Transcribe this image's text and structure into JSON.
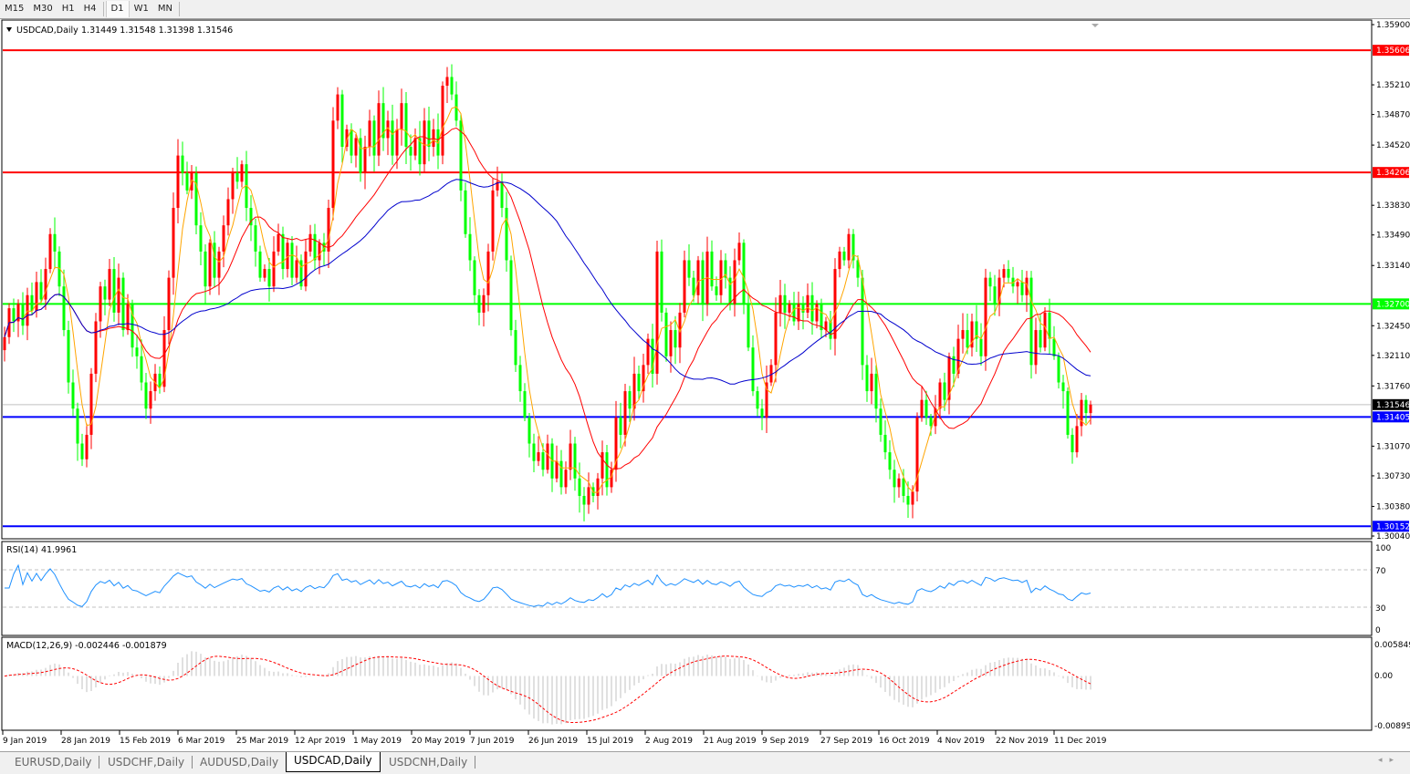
{
  "toolbar": {
    "timeframes": [
      "M15",
      "M30",
      "H1",
      "H4",
      "D1",
      "W1",
      "MN"
    ],
    "active": "D1"
  },
  "chart": {
    "symbol_label": "USDCAD,Daily",
    "ohlc_label": "1.31449 1.31548 1.31398 1.31546",
    "price_ticks": [
      "1.35900",
      "1.35210",
      "1.34870",
      "1.34520",
      "1.33830",
      "1.33490",
      "1.33140",
      "1.32450",
      "1.32110",
      "1.31760",
      "1.31070",
      "1.30730",
      "1.30380",
      "1.30040"
    ],
    "hlines": [
      {
        "price": "1.35606",
        "color": "#ff0000"
      },
      {
        "price": "1.34206",
        "color": "#ff0000"
      },
      {
        "price": "1.32700",
        "color": "#00ff00"
      },
      {
        "price": "1.31405",
        "color": "#0000ff"
      },
      {
        "price": "1.30152",
        "color": "#0000ff"
      }
    ],
    "current_price": "1.31546",
    "colors": {
      "bull": "#ff0000",
      "bear": "#00ff00",
      "ma_fast": "#ffa500",
      "ma_mid": "#ff0000",
      "ma_slow": "#0000cd",
      "rsi": "#1e90ff",
      "macd_hist": "#c0c0c0",
      "macd_signal": "#ff0000"
    }
  },
  "rsi": {
    "label": "RSI(14) 41.9961",
    "ticks": [
      "100",
      "70",
      "30",
      "0"
    ]
  },
  "macd": {
    "label": "MACD(12,26,9) -0.002446 -0.001879",
    "ticks": [
      "0.005849",
      "0.00",
      "-0.008954"
    ]
  },
  "date_labels": [
    "9 Jan 2019",
    "28 Jan 2019",
    "15 Feb 2019",
    "6 Mar 2019",
    "25 Mar 2019",
    "12 Apr 2019",
    "1 May 2019",
    "20 May 2019",
    "7 Jun 2019",
    "26 Jun 2019",
    "15 Jul 2019",
    "2 Aug 2019",
    "21 Aug 2019",
    "9 Sep 2019",
    "27 Sep 2019",
    "16 Oct 2019",
    "4 Nov 2019",
    "22 Nov 2019",
    "11 Dec 2019"
  ],
  "tabs": [
    "EURUSD,Daily",
    "USDCHF,Daily",
    "AUDUSD,Daily",
    "USDCAD,Daily",
    "USDCNH,Daily"
  ],
  "active_tab": "USDCAD,Daily",
  "chart_data": {
    "type": "candlestick",
    "symbol": "USDCAD",
    "last_bar": {
      "open": 1.31449,
      "high": 1.31548,
      "low": 1.31398,
      "close": 1.31546
    },
    "ylim": [
      1.3004,
      1.359
    ],
    "closes": [
      1.3232,
      1.3265,
      1.325,
      1.327,
      1.3245,
      1.328,
      1.3262,
      1.3295,
      1.3275,
      1.331,
      1.335,
      1.333,
      1.329,
      1.324,
      1.318,
      1.315,
      1.311,
      1.3092,
      1.312,
      1.319,
      1.325,
      1.329,
      1.3275,
      1.331,
      1.326,
      1.33,
      1.324,
      1.327,
      1.322,
      1.321,
      1.318,
      1.315,
      1.317,
      1.319,
      1.3175,
      1.324,
      1.33,
      1.338,
      1.344,
      1.342,
      1.34,
      1.342,
      1.336,
      1.333,
      1.329,
      1.334,
      1.33,
      1.333,
      1.336,
      1.339,
      1.342,
      1.341,
      1.343,
      1.338,
      1.336,
      1.333,
      1.33,
      1.331,
      1.329,
      1.333,
      1.335,
      1.331,
      1.334,
      1.33,
      1.332,
      1.329,
      1.333,
      1.335,
      1.332,
      1.334,
      1.333,
      1.338,
      1.348,
      1.351,
      1.345,
      1.347,
      1.344,
      1.346,
      1.342,
      1.345,
      1.348,
      1.344,
      1.35,
      1.346,
      1.348,
      1.344,
      1.347,
      1.35,
      1.345,
      1.344,
      1.346,
      1.343,
      1.348,
      1.345,
      1.347,
      1.344,
      1.352,
      1.353,
      1.351,
      1.348,
      1.34,
      1.335,
      1.332,
      1.328,
      1.326,
      1.328,
      1.333,
      1.34,
      1.341,
      1.338,
      1.332,
      1.324,
      1.32,
      1.317,
      1.314,
      1.311,
      1.309,
      1.31,
      1.308,
      1.311,
      1.307,
      1.309,
      1.306,
      1.308,
      1.311,
      1.307,
      1.305,
      1.304,
      1.306,
      1.305,
      1.307,
      1.31,
      1.306,
      1.308,
      1.314,
      1.312,
      1.317,
      1.315,
      1.319,
      1.317,
      1.32,
      1.323,
      1.319,
      1.333,
      1.326,
      1.321,
      1.324,
      1.322,
      1.326,
      1.332,
      1.33,
      1.328,
      1.332,
      1.327,
      1.333,
      1.329,
      1.328,
      1.332,
      1.33,
      1.327,
      1.332,
      1.334,
      1.327,
      1.322,
      1.317,
      1.315,
      1.314,
      1.318,
      1.32,
      1.326,
      1.328,
      1.326,
      1.327,
      1.325,
      1.327,
      1.326,
      1.328,
      1.325,
      1.327,
      1.324,
      1.325,
      1.323,
      1.331,
      1.333,
      1.332,
      1.335,
      1.332,
      1.33,
      1.32,
      1.317,
      1.319,
      1.315,
      1.312,
      1.31,
      1.308,
      1.306,
      1.307,
      1.305,
      1.304,
      1.3055,
      1.314,
      1.316,
      1.314,
      1.313,
      1.315,
      1.318,
      1.316,
      1.321,
      1.319,
      1.323,
      1.324,
      1.322,
      1.325,
      1.323,
      1.321,
      1.33,
      1.329,
      1.327,
      1.33,
      1.331,
      1.33,
      1.329,
      1.3295,
      1.328,
      1.33,
      1.32,
      1.324,
      1.322,
      1.326,
      1.323,
      1.321,
      1.318,
      1.317,
      1.312,
      1.31,
      1.313,
      1.316,
      1.31449,
      1.31546
    ]
  }
}
